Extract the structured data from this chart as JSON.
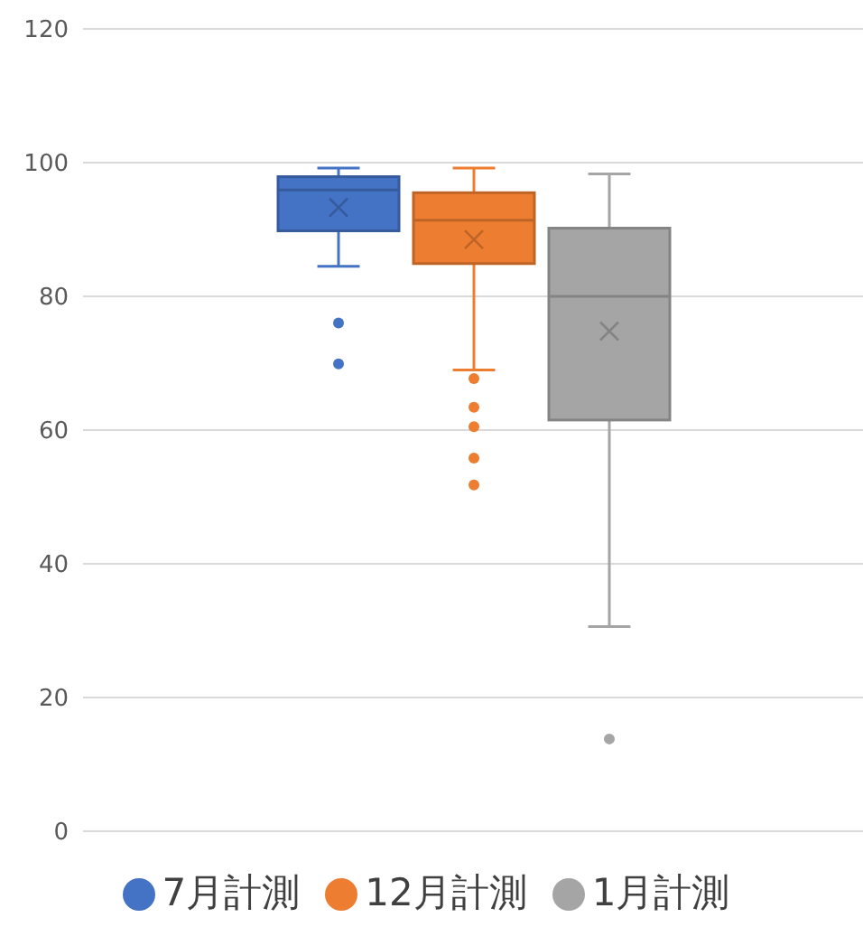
{
  "chart_data": {
    "type": "box",
    "categories": [
      null
    ],
    "ylim": [
      0,
      120
    ],
    "yticks": [
      0,
      20,
      40,
      60,
      80,
      100,
      120
    ],
    "grid": "y",
    "legend": "bottom",
    "marker": "cross",
    "series": [
      {
        "name": "7月計測",
        "color": "#4472c4",
        "boxes": [
          {
            "low": 84.5,
            "q1": 89.8,
            "median": 95.9,
            "q3": 97.9,
            "high": 99.2,
            "mean": 93.3,
            "outliers": [
              76.0,
              69.9
            ]
          }
        ]
      },
      {
        "name": "12月計測",
        "color": "#ed7d31",
        "boxes": [
          {
            "low": 69.0,
            "q1": 84.9,
            "median": 91.4,
            "q3": 95.5,
            "high": 99.2,
            "mean": 88.5,
            "outliers": [
              67.7,
              63.4,
              60.5,
              55.8,
              51.8
            ]
          }
        ]
      },
      {
        "name": "1月計測",
        "color": "#a5a5a5",
        "boxes": [
          {
            "low": 30.6,
            "q1": 61.5,
            "median": 80.0,
            "q3": 90.2,
            "high": 98.3,
            "mean": 74.8,
            "outliers": [
              13.8
            ]
          }
        ]
      }
    ]
  }
}
